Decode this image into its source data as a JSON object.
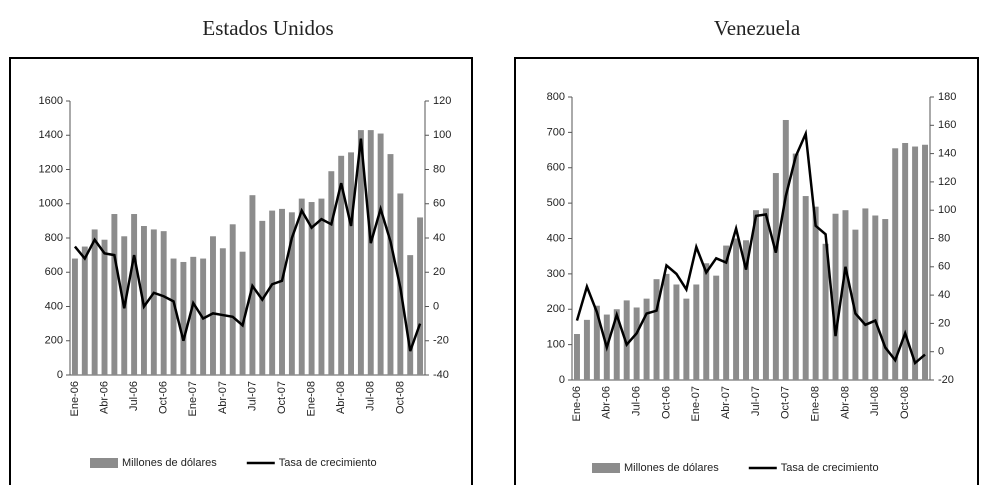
{
  "chart_data": [
    {
      "type": "bar",
      "title": "Estados Unidos",
      "categories": [
        "Ene-06",
        null,
        null,
        "Abr-06",
        null,
        null,
        "Jul-06",
        null,
        null,
        "Oct-06",
        null,
        null,
        "Ene-07",
        null,
        null,
        "Abr-07",
        null,
        null,
        "Jul-07",
        null,
        null,
        "Oct-07",
        null,
        null,
        "Ene-08",
        null,
        null,
        "Abr-08",
        null,
        null,
        "Jul-08",
        null,
        null,
        "Oct-08",
        null,
        null
      ],
      "series": [
        {
          "name": "Millones de dólares",
          "type": "bar",
          "color": "#8c8c8c",
          "values": [
            680,
            750,
            850,
            790,
            940,
            810,
            940,
            870,
            850,
            840,
            680,
            660,
            690,
            680,
            810,
            740,
            880,
            720,
            1050,
            900,
            960,
            970,
            950,
            1030,
            1010,
            1030,
            1190,
            1280,
            1300,
            1430,
            1430,
            1410,
            1290,
            1060,
            700,
            920
          ]
        },
        {
          "name": "Tasa de crecimiento",
          "type": "line",
          "color": "#000000",
          "axis": "y2",
          "values": [
            35,
            28,
            39,
            31,
            30,
            -1,
            30,
            0,
            8,
            6,
            3,
            -20,
            2,
            -7,
            -4,
            -5,
            -6,
            -11,
            12,
            4,
            13,
            15,
            40,
            56,
            46,
            51,
            48,
            72,
            47,
            98,
            37,
            57,
            38,
            11,
            -26,
            -10
          ]
        }
      ],
      "ylim": [
        0,
        1600
      ],
      "yticks": [
        0,
        200,
        400,
        600,
        800,
        1000,
        1200,
        1400,
        1600
      ],
      "y2lim": [
        -40,
        120
      ],
      "y2ticks": [
        -40,
        -20,
        0,
        20,
        40,
        60,
        80,
        100,
        120
      ],
      "legend": "bottom"
    },
    {
      "type": "bar",
      "title": "Venezuela",
      "categories": [
        "Ene-06",
        null,
        null,
        "Abr-06",
        null,
        null,
        "Jul-06",
        null,
        null,
        "Oct-06",
        null,
        null,
        "Ene-07",
        null,
        null,
        "Abr-07",
        null,
        null,
        "Jul-07",
        null,
        null,
        "Oct-07",
        null,
        null,
        "Ene-08",
        null,
        null,
        "Abr-08",
        null,
        null,
        "Jul-08",
        null,
        null,
        "Oct-08",
        null,
        null
      ],
      "series": [
        {
          "name": "Millones de dólares",
          "type": "bar",
          "color": "#8c8c8c",
          "values": [
            130,
            170,
            210,
            185,
            200,
            225,
            205,
            230,
            285,
            300,
            270,
            230,
            270,
            330,
            295,
            380,
            400,
            395,
            480,
            485,
            585,
            735,
            640,
            520,
            490,
            385,
            470,
            480,
            425,
            485,
            465,
            455,
            655,
            670,
            660,
            665
          ]
        },
        {
          "name": "Tasa de crecimiento",
          "type": "line",
          "color": "#000000",
          "axis": "y2",
          "values": [
            22,
            46,
            28,
            3,
            26,
            5,
            13,
            27,
            29,
            61,
            55,
            44,
            74,
            56,
            66,
            63,
            87,
            58,
            96,
            97,
            70,
            110,
            138,
            154,
            89,
            83,
            11,
            60,
            27,
            19,
            22,
            3,
            -6,
            13,
            -8,
            -2
          ]
        }
      ],
      "ylim": [
        0,
        800
      ],
      "yticks": [
        0,
        100,
        200,
        300,
        400,
        500,
        600,
        700,
        800
      ],
      "y2lim": [
        -20,
        180
      ],
      "y2ticks": [
        -20,
        0,
        20,
        40,
        60,
        80,
        100,
        120,
        140,
        160,
        180
      ],
      "legend": "bottom"
    }
  ]
}
